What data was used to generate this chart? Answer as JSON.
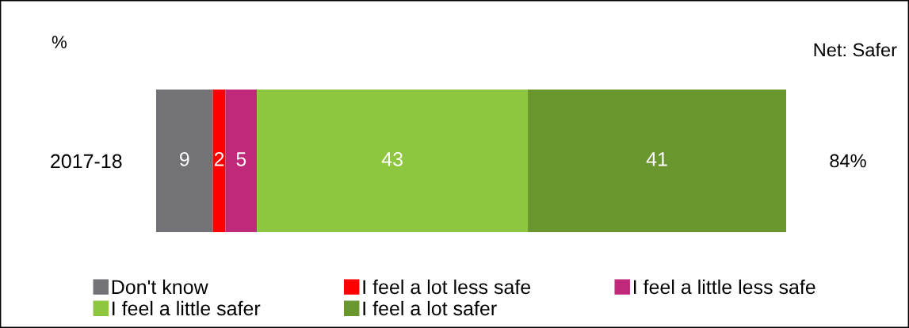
{
  "chart_data": {
    "type": "bar",
    "orientation": "horizontal",
    "stacked": true,
    "categories": [
      "2017-18"
    ],
    "series": [
      {
        "name": "Don't know",
        "color": "#737277",
        "values": [
          9
        ]
      },
      {
        "name": "I feel a lot less safe",
        "color": "#ff0000",
        "values": [
          2
        ]
      },
      {
        "name": "I feel a little less safe",
        "color": "#c0287a",
        "values": [
          5
        ]
      },
      {
        "name": "I feel a little safer",
        "color": "#8dc63f",
        "values": [
          43
        ]
      },
      {
        "name": "I feel a lot safer",
        "color": "#6a962e",
        "values": [
          41
        ]
      }
    ],
    "xlim": [
      0,
      100
    ],
    "data_labels": true,
    "tick_labels": "y",
    "grid": false,
    "legend": "bottom",
    "annotations": [
      "%",
      "Net: Safer",
      "84%"
    ]
  }
}
